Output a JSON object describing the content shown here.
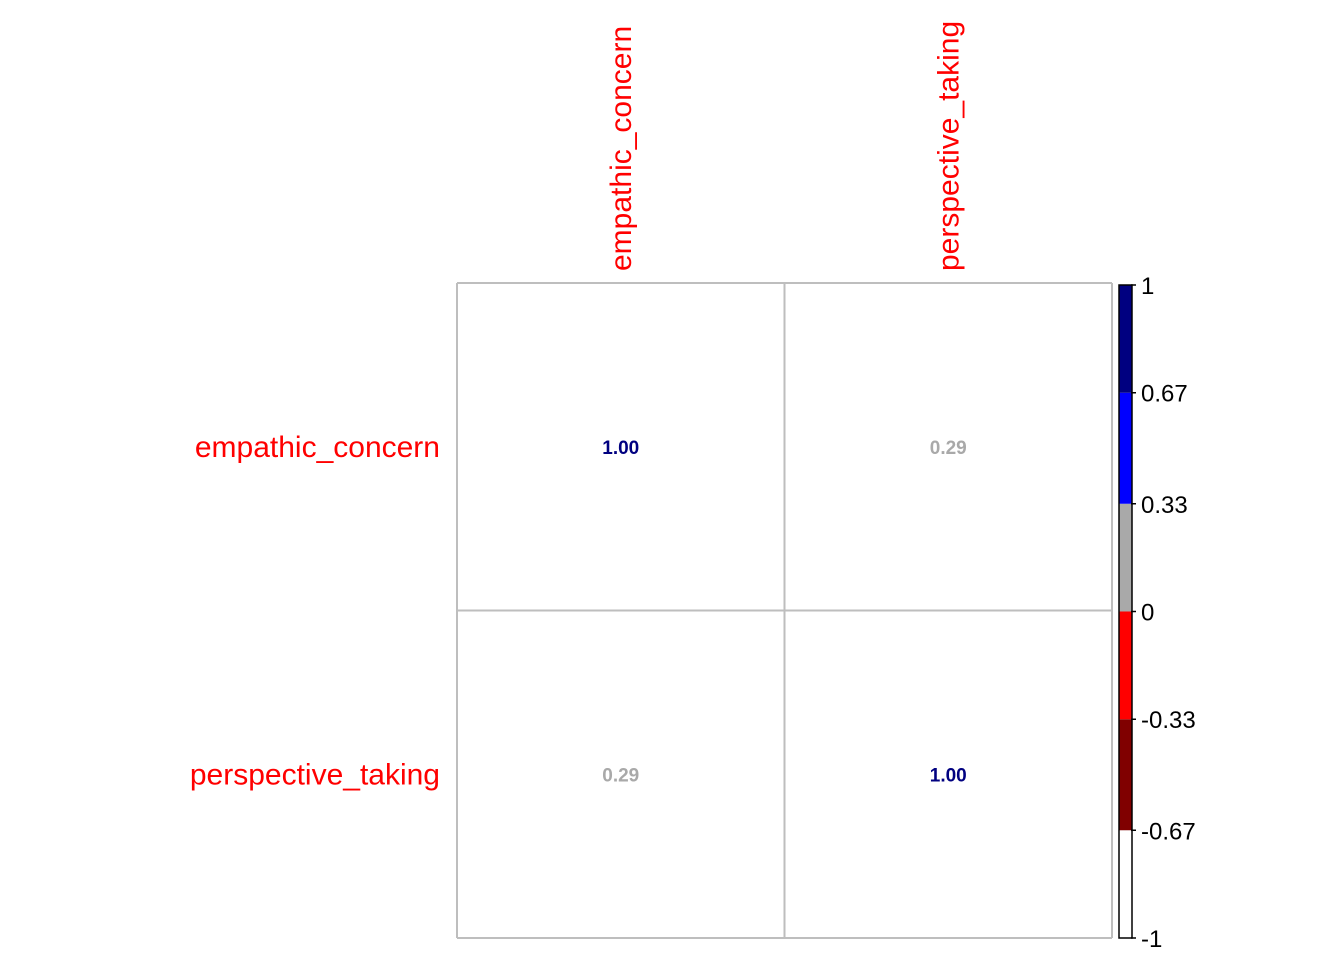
{
  "chart_data": {
    "type": "heatmap",
    "title": "",
    "row_labels": [
      "empathic_concern",
      "perspective_taking"
    ],
    "col_labels": [
      "empathic_concern",
      "perspective_taking"
    ],
    "values": [
      [
        1.0,
        0.29
      ],
      [
        0.29,
        1.0
      ]
    ],
    "cell_labels": [
      [
        "1.00",
        "0.29"
      ],
      [
        "0.29",
        "1.00"
      ]
    ],
    "color_scale": {
      "bins": [
        {
          "from": -1,
          "to": -0.67,
          "color": "#ffffff"
        },
        {
          "from": -0.67,
          "to": -0.33,
          "color": "#800000"
        },
        {
          "from": -0.33,
          "to": 0,
          "color": "#ff0000"
        },
        {
          "from": 0,
          "to": 0.33,
          "color": "#a9a9a9"
        },
        {
          "from": 0.33,
          "to": 0.67,
          "color": "#0000ff"
        },
        {
          "from": 0.67,
          "to": 1,
          "color": "#000080"
        }
      ],
      "tick_labels": [
        "1",
        "0.67",
        "0.33",
        "0",
        "-0.33",
        "-0.67",
        "-1"
      ],
      "tick_values": [
        1,
        0.67,
        0.33,
        0,
        -0.33,
        -0.67,
        -1
      ]
    },
    "colors": {
      "axis_label": "#ff0000",
      "grid": "#bebebe",
      "legend_border": "#000000"
    },
    "grid": true,
    "legend_placement": "right"
  }
}
